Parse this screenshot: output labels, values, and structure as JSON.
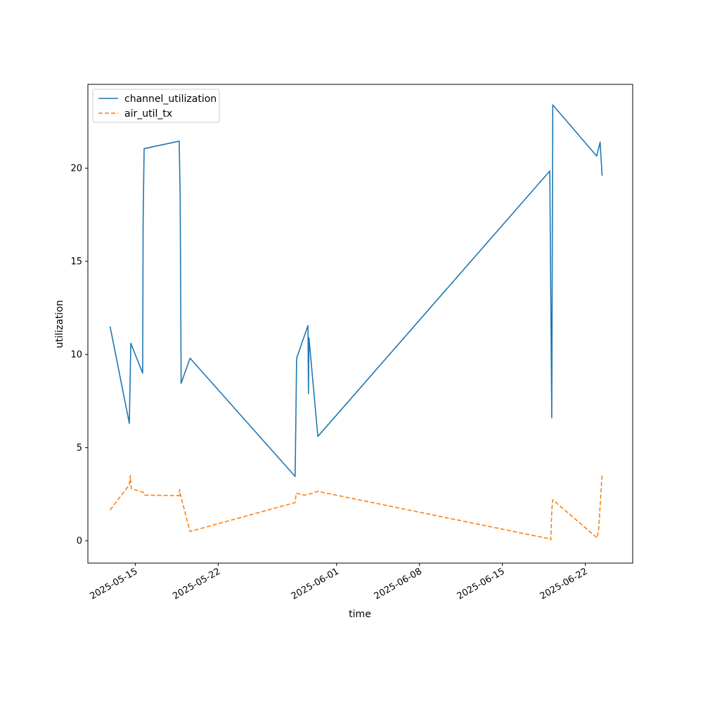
{
  "chart_data": {
    "type": "line",
    "xlabel": "time",
    "ylabel": "utilization",
    "x_ticks": [
      "2025-05-15",
      "2025-05-22",
      "2025-06-01",
      "2025-06-08",
      "2025-06-15",
      "2025-06-22"
    ],
    "y_ticks": [
      "0",
      "5",
      "10",
      "15",
      "20"
    ],
    "xlim": [
      "2025-05-11T00:00",
      "2025-06-26T00:00"
    ],
    "ylim": [
      -1.2,
      24.5
    ],
    "grid": false,
    "legend_position": "upper-left",
    "series": [
      {
        "name": "channel_utilization",
        "color": "#1f77b4",
        "dash": "solid",
        "points": [
          [
            "2025-05-12T21:00",
            11.5
          ],
          [
            "2025-05-14T12:00",
            6.3
          ],
          [
            "2025-05-14T15:00",
            10.6
          ],
          [
            "2025-05-15T15:00",
            9.0
          ],
          [
            "2025-05-15T16:00",
            17.3
          ],
          [
            "2025-05-15T18:00",
            21.05
          ],
          [
            "2025-05-18T17:00",
            21.45
          ],
          [
            "2025-05-18T19:00",
            18.6
          ],
          [
            "2025-05-18T21:00",
            8.45
          ],
          [
            "2025-05-19T15:00",
            9.8
          ],
          [
            "2025-05-28T12:00",
            3.45
          ],
          [
            "2025-05-28T15:00",
            9.8
          ],
          [
            "2025-05-29T14:00",
            11.55
          ],
          [
            "2025-05-29T15:00",
            7.9
          ],
          [
            "2025-05-29T16:00",
            10.9
          ],
          [
            "2025-05-30T10:00",
            5.6
          ],
          [
            "2025-06-19T00:00",
            19.85
          ],
          [
            "2025-06-19T04:00",
            6.6
          ],
          [
            "2025-06-19T06:00",
            23.4
          ],
          [
            "2025-06-22T23:00",
            20.65
          ],
          [
            "2025-06-23T06:00",
            21.4
          ],
          [
            "2025-06-23T10:00",
            19.6
          ]
        ]
      },
      {
        "name": "air_util_tx",
        "color": "#ff7f0e",
        "dash": "dashed",
        "points": [
          [
            "2025-05-12T21:00",
            1.65
          ],
          [
            "2025-05-14T12:00",
            3.0
          ],
          [
            "2025-05-14T14:00",
            3.5
          ],
          [
            "2025-05-14T16:00",
            2.8
          ],
          [
            "2025-05-15T16:00",
            2.6
          ],
          [
            "2025-05-15T19:00",
            2.45
          ],
          [
            "2025-05-18T17:00",
            2.42
          ],
          [
            "2025-05-18T18:00",
            2.75
          ],
          [
            "2025-05-18T20:00",
            2.42
          ],
          [
            "2025-05-19T15:00",
            0.5
          ],
          [
            "2025-05-28T12:00",
            2.05
          ],
          [
            "2025-05-28T14:00",
            2.55
          ],
          [
            "2025-05-29T06:00",
            2.45
          ],
          [
            "2025-05-29T16:00",
            2.5
          ],
          [
            "2025-05-30T10:00",
            2.65
          ],
          [
            "2025-06-19T00:00",
            0.1
          ],
          [
            "2025-06-19T02:00",
            0.05
          ],
          [
            "2025-06-19T04:00",
            1.6
          ],
          [
            "2025-06-19T06:00",
            2.2
          ],
          [
            "2025-06-23T00:00",
            0.15
          ],
          [
            "2025-06-23T03:00",
            0.6
          ],
          [
            "2025-06-23T10:00",
            3.6
          ]
        ]
      }
    ]
  }
}
